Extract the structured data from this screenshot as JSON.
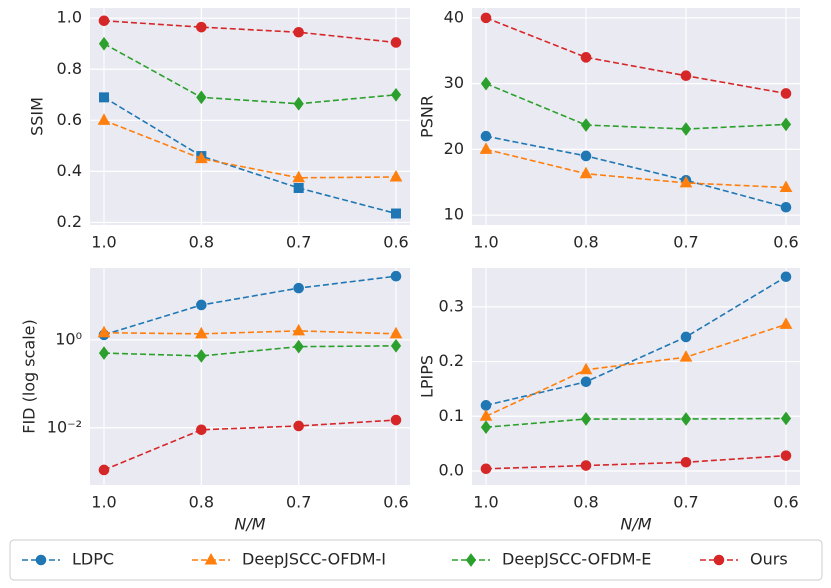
{
  "chart_data": [
    {
      "type": "line",
      "ylabel": "SSIM",
      "categories": [
        "1.0",
        "0.8",
        "0.7",
        "0.6"
      ],
      "ylim": [
        0.19,
        1.04
      ],
      "yticks": [
        {
          "value": 0.2,
          "label": "0.2"
        },
        {
          "value": 0.4,
          "label": "0.4"
        },
        {
          "value": 0.6,
          "label": "0.6"
        },
        {
          "value": 0.8,
          "label": "0.8"
        },
        {
          "value": 1.0,
          "label": "1.0"
        }
      ],
      "grid": true,
      "series": [
        {
          "color": "#1f77b4",
          "marker": "square",
          "values": [
            0.69,
            0.46,
            0.335,
            0.235
          ]
        },
        {
          "color": "#ff7f0e",
          "marker": "triangle",
          "values": [
            0.6,
            0.45,
            0.375,
            0.378
          ]
        },
        {
          "color": "#2ca02c",
          "marker": "diamond",
          "values": [
            0.9,
            0.69,
            0.665,
            0.7
          ]
        },
        {
          "color": "#d62728",
          "marker": "circle",
          "values": [
            0.99,
            0.965,
            0.945,
            0.905
          ]
        }
      ]
    },
    {
      "type": "line",
      "ylabel": "PSNR",
      "categories": [
        "1.0",
        "0.8",
        "0.7",
        "0.6"
      ],
      "ylim": [
        8.5,
        41.5
      ],
      "yticks": [
        10,
        20,
        30,
        40
      ],
      "grid": true,
      "series": [
        {
          "color": "#1f77b4",
          "marker": "circle",
          "values": [
            22,
            19,
            15.3,
            11.2
          ]
        },
        {
          "color": "#ff7f0e",
          "marker": "triangle",
          "values": [
            20,
            16.3,
            14.9,
            14.2
          ]
        },
        {
          "color": "#2ca02c",
          "marker": "diamond",
          "values": [
            30,
            23.7,
            23.1,
            23.8
          ]
        },
        {
          "color": "#d62728",
          "marker": "circle",
          "values": [
            40,
            34,
            31.2,
            28.5
          ]
        }
      ]
    },
    {
      "type": "line",
      "ylabel": "FID (log scale)",
      "xlabel": "N/M",
      "categories": [
        "1.0",
        "0.8",
        "0.7",
        "0.6"
      ],
      "log_scale": true,
      "ylim": [
        0.0005,
        43
      ],
      "yticks": [
        {
          "value": 0.01,
          "label": "10⁻²"
        },
        {
          "value": 1,
          "label": "10⁰"
        }
      ],
      "grid": true,
      "series": [
        {
          "color": "#1f77b4",
          "marker": "circle",
          "values": [
            1.3,
            6.2,
            15,
            28
          ]
        },
        {
          "color": "#ff7f0e",
          "marker": "triangle",
          "values": [
            1.45,
            1.37,
            1.6,
            1.37
          ]
        },
        {
          "color": "#2ca02c",
          "marker": "diamond",
          "values": [
            0.5,
            0.43,
            0.7,
            0.73
          ]
        },
        {
          "color": "#d62728",
          "marker": "circle",
          "values": [
            0.0011,
            0.009,
            0.011,
            0.015
          ]
        }
      ]
    },
    {
      "type": "line",
      "ylabel": "LPIPS",
      "xlabel": "N/M",
      "categories": [
        "1.0",
        "0.8",
        "0.7",
        "0.6"
      ],
      "ylim": [
        -0.0256,
        0.371
      ],
      "yticks": [
        {
          "value": 0.0,
          "label": "0.0"
        },
        {
          "value": 0.1,
          "label": "0.1"
        },
        {
          "value": 0.2,
          "label": "0.2"
        },
        {
          "value": 0.3,
          "label": "0.3"
        }
      ],
      "grid": true,
      "series": [
        {
          "color": "#1f77b4",
          "marker": "circle",
          "values": [
            0.12,
            0.163,
            0.245,
            0.355
          ]
        },
        {
          "color": "#ff7f0e",
          "marker": "triangle",
          "values": [
            0.1,
            0.185,
            0.208,
            0.268
          ]
        },
        {
          "color": "#2ca02c",
          "marker": "diamond",
          "values": [
            0.08,
            0.095,
            0.095,
            0.096
          ]
        },
        {
          "color": "#d62728",
          "marker": "circle",
          "values": [
            0.004,
            0.01,
            0.016,
            0.028
          ]
        }
      ]
    }
  ],
  "legend": {
    "entries": [
      {
        "name": "LDPC",
        "color": "#1f77b4",
        "marker": "circle"
      },
      {
        "name": "DeepJSCC-OFDM-I",
        "color": "#ff7f0e",
        "marker": "triangle"
      },
      {
        "name": "DeepJSCC-OFDM-E",
        "color": "#2ca02c",
        "marker": "diamond"
      },
      {
        "name": "Ours",
        "color": "#d62728",
        "marker": "circle"
      }
    ]
  }
}
